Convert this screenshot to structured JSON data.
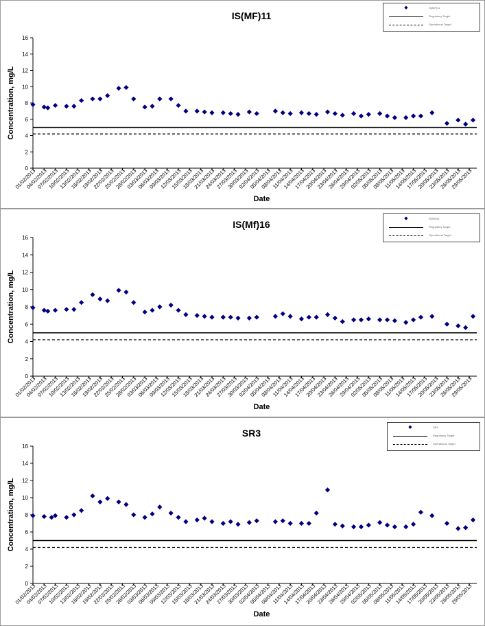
{
  "chart_data": [
    {
      "type": "scatter",
      "title": "IS(MF)11",
      "xlabel": "Date",
      "ylabel": "Concentration, mg/L",
      "ylim": [
        0,
        16
      ],
      "yticks": [
        "0",
        "2",
        "4",
        "6",
        "8",
        "10",
        "12",
        "14",
        "16"
      ],
      "xlim": [
        "2013-02-01",
        "2013-05-31"
      ],
      "xticks": [
        "01/02/2013",
        "04/02/2013",
        "07/02/2013",
        "10/02/2013",
        "13/02/2013",
        "16/02/2013",
        "19/02/2013",
        "22/02/2013",
        "25/02/2013",
        "28/02/2013",
        "03/03/2013",
        "06/03/2013",
        "09/03/2013",
        "12/03/2013",
        "15/03/2013",
        "18/03/2013",
        "21/03/2013",
        "24/03/2013",
        "27/03/2013",
        "30/03/2013",
        "02/04/2013",
        "05/04/2013",
        "08/04/2013",
        "11/04/2013",
        "14/04/2013",
        "17/04/2013",
        "20/04/2013",
        "23/04/2013",
        "26/04/2013",
        "29/04/2013",
        "02/05/2013",
        "05/05/2013",
        "08/05/2013",
        "11/05/2013",
        "14/05/2013",
        "17/05/2013",
        "20/05/2013",
        "23/05/2013",
        "26/05/2013",
        "29/05/2013"
      ],
      "grid": false,
      "legend_position": "top-right",
      "legend": [
        "IS(MF)11",
        "Regulatory Target",
        "Operational Target"
      ],
      "colors": {
        "points": "#000080",
        "line": "#000000"
      },
      "hlines": [
        5.0,
        4.2
      ],
      "x": [
        "2013-02-01",
        "2013-02-04",
        "2013-02-05",
        "2013-02-07",
        "2013-02-10",
        "2013-02-12",
        "2013-02-14",
        "2013-02-17",
        "2013-02-19",
        "2013-02-21",
        "2013-02-24",
        "2013-02-26",
        "2013-02-28",
        "2013-03-03",
        "2013-03-05",
        "2013-03-07",
        "2013-03-10",
        "2013-03-12",
        "2013-03-14",
        "2013-03-17",
        "2013-03-19",
        "2013-03-21",
        "2013-03-24",
        "2013-03-26",
        "2013-03-28",
        "2013-03-31",
        "2013-04-02",
        "2013-04-07",
        "2013-04-09",
        "2013-04-11",
        "2013-04-14",
        "2013-04-16",
        "2013-04-18",
        "2013-04-21",
        "2013-04-23",
        "2013-04-25",
        "2013-04-28",
        "2013-04-30",
        "2013-05-02",
        "2013-05-05",
        "2013-05-07",
        "2013-05-09",
        "2013-05-12",
        "2013-05-14",
        "2013-05-16",
        "2013-05-19",
        "2013-05-23",
        "2013-05-26",
        "2013-05-28",
        "2013-05-30"
      ],
      "values": [
        7.8,
        7.5,
        7.4,
        7.7,
        7.6,
        7.6,
        8.3,
        8.5,
        8.5,
        8.9,
        9.8,
        9.9,
        8.5,
        7.5,
        7.6,
        8.5,
        8.5,
        7.7,
        7.0,
        7.0,
        6.9,
        6.8,
        6.8,
        6.7,
        6.6,
        6.9,
        6.7,
        7.0,
        6.8,
        6.7,
        6.8,
        6.7,
        6.6,
        6.9,
        6.7,
        6.5,
        6.7,
        6.4,
        6.6,
        6.7,
        6.4,
        6.2,
        6.2,
        6.4,
        6.4,
        6.8,
        5.5,
        5.9,
        5.4,
        5.9
      ]
    },
    {
      "type": "scatter",
      "title": "IS(Mf)16",
      "xlabel": "Date",
      "ylabel": "Concentration, mg/L",
      "ylim": [
        0,
        16
      ],
      "yticks": [
        "0",
        "2",
        "4",
        "6",
        "8",
        "10",
        "12",
        "14",
        "16"
      ],
      "xlim": [
        "2013-02-01",
        "2013-05-31"
      ],
      "xticks": [
        "01/02/2013",
        "04/02/2013",
        "07/02/2013",
        "10/02/2013",
        "13/02/2013",
        "16/02/2013",
        "19/02/2013",
        "22/02/2013",
        "25/02/2013",
        "28/02/2013",
        "03/03/2013",
        "06/03/2013",
        "09/03/2013",
        "12/03/2013",
        "15/03/2013",
        "18/03/2013",
        "21/03/2013",
        "24/03/2013",
        "27/03/2013",
        "30/03/2013",
        "02/04/2013",
        "05/04/2013",
        "08/04/2013",
        "11/04/2013",
        "14/04/2013",
        "17/04/2013",
        "20/04/2013",
        "23/04/2013",
        "26/04/2013",
        "29/04/2013",
        "02/05/2013",
        "05/05/2013",
        "08/05/2013",
        "11/05/2013",
        "14/05/2013",
        "17/05/2013",
        "20/05/2013",
        "23/05/2013",
        "26/05/2013",
        "29/05/2013"
      ],
      "grid": false,
      "legend_position": "top-right",
      "legend": [
        "IS(Mf)16",
        "Regulatory Target",
        "Operational Target"
      ],
      "colors": {
        "points": "#000080",
        "line": "#000000"
      },
      "hlines": [
        5.0,
        4.2
      ],
      "x": [
        "2013-02-01",
        "2013-02-04",
        "2013-02-05",
        "2013-02-07",
        "2013-02-10",
        "2013-02-12",
        "2013-02-14",
        "2013-02-17",
        "2013-02-19",
        "2013-02-21",
        "2013-02-24",
        "2013-02-26",
        "2013-02-28",
        "2013-03-03",
        "2013-03-05",
        "2013-03-07",
        "2013-03-10",
        "2013-03-12",
        "2013-03-14",
        "2013-03-17",
        "2013-03-19",
        "2013-03-21",
        "2013-03-24",
        "2013-03-26",
        "2013-03-28",
        "2013-03-31",
        "2013-04-02",
        "2013-04-07",
        "2013-04-09",
        "2013-04-11",
        "2013-04-14",
        "2013-04-16",
        "2013-04-18",
        "2013-04-21",
        "2013-04-23",
        "2013-04-25",
        "2013-04-28",
        "2013-04-30",
        "2013-05-02",
        "2013-05-05",
        "2013-05-07",
        "2013-05-09",
        "2013-05-12",
        "2013-05-14",
        "2013-05-16",
        "2013-05-19",
        "2013-05-23",
        "2013-05-26",
        "2013-05-28",
        "2013-05-30"
      ],
      "values": [
        7.9,
        7.6,
        7.5,
        7.6,
        7.7,
        7.7,
        8.5,
        9.4,
        8.9,
        8.7,
        9.9,
        9.7,
        8.5,
        7.4,
        7.6,
        8.0,
        8.2,
        7.6,
        7.1,
        7.0,
        6.9,
        6.8,
        6.8,
        6.8,
        6.7,
        6.7,
        6.8,
        6.9,
        7.2,
        6.9,
        6.6,
        6.8,
        6.8,
        7.1,
        6.7,
        6.3,
        6.5,
        6.5,
        6.6,
        6.5,
        6.5,
        6.4,
        6.2,
        6.5,
        6.8,
        6.9,
        6.0,
        5.8,
        5.6,
        6.9
      ]
    },
    {
      "type": "scatter",
      "title": "SR3",
      "xlabel": "Date",
      "ylabel": "Concentration, mg/L",
      "ylim": [
        0,
        16
      ],
      "yticks": [
        "0",
        "2",
        "4",
        "6",
        "8",
        "10",
        "12",
        "14",
        "16"
      ],
      "xlim": [
        "2013-02-01",
        "2013-05-31"
      ],
      "xticks": [
        "01/02/2013",
        "04/02/2013",
        "07/02/2013",
        "10/02/2013",
        "13/02/2013",
        "16/02/2013",
        "19/02/2013",
        "22/02/2013",
        "25/02/2013",
        "28/02/2013",
        "03/03/2013",
        "06/03/2013",
        "09/03/2013",
        "12/03/2013",
        "15/03/2013",
        "18/03/2013",
        "21/03/2013",
        "24/03/2013",
        "27/03/2013",
        "30/03/2013",
        "02/04/2013",
        "05/04/2013",
        "08/04/2013",
        "11/04/2013",
        "14/04/2013",
        "17/04/2013",
        "20/04/2013",
        "23/04/2013",
        "26/04/2013",
        "29/04/2013",
        "02/05/2013",
        "05/05/2013",
        "08/05/2013",
        "11/05/2013",
        "14/05/2013",
        "17/05/2013",
        "20/05/2013",
        "23/05/2013",
        "26/05/2013",
        "29/05/2013"
      ],
      "grid": false,
      "legend_position": "top-right",
      "legend": [
        "SR3",
        "Regulatory Target",
        "Operational Target"
      ],
      "colors": {
        "points": "#000080",
        "line": "#000000"
      },
      "hlines": [
        5.0,
        4.2
      ],
      "x": [
        "2013-02-01",
        "2013-02-04",
        "2013-02-06",
        "2013-02-07",
        "2013-02-10",
        "2013-02-12",
        "2013-02-14",
        "2013-02-17",
        "2013-02-19",
        "2013-02-21",
        "2013-02-24",
        "2013-02-26",
        "2013-02-28",
        "2013-03-03",
        "2013-03-05",
        "2013-03-07",
        "2013-03-10",
        "2013-03-12",
        "2013-03-14",
        "2013-03-17",
        "2013-03-19",
        "2013-03-21",
        "2013-03-24",
        "2013-03-26",
        "2013-03-28",
        "2013-03-31",
        "2013-04-02",
        "2013-04-07",
        "2013-04-09",
        "2013-04-11",
        "2013-04-14",
        "2013-04-16",
        "2013-04-18",
        "2013-04-21",
        "2013-04-23",
        "2013-04-25",
        "2013-04-28",
        "2013-04-30",
        "2013-05-02",
        "2013-05-05",
        "2013-05-07",
        "2013-05-09",
        "2013-05-12",
        "2013-05-14",
        "2013-05-16",
        "2013-05-19",
        "2013-05-23",
        "2013-05-26",
        "2013-05-28",
        "2013-05-30"
      ],
      "values": [
        7.9,
        7.8,
        7.7,
        7.9,
        7.7,
        8.0,
        8.5,
        10.2,
        9.5,
        9.9,
        9.5,
        9.2,
        8.0,
        7.7,
        8.1,
        8.9,
        8.2,
        7.7,
        7.2,
        7.4,
        7.6,
        7.2,
        7.0,
        7.2,
        6.9,
        7.1,
        7.3,
        7.2,
        7.3,
        7.0,
        7.0,
        7.0,
        8.2,
        10.9,
        6.9,
        6.7,
        6.6,
        6.6,
        6.8,
        7.1,
        6.8,
        6.6,
        6.6,
        6.9,
        8.3,
        7.9,
        7.0,
        6.4,
        6.5,
        7.4
      ]
    }
  ]
}
